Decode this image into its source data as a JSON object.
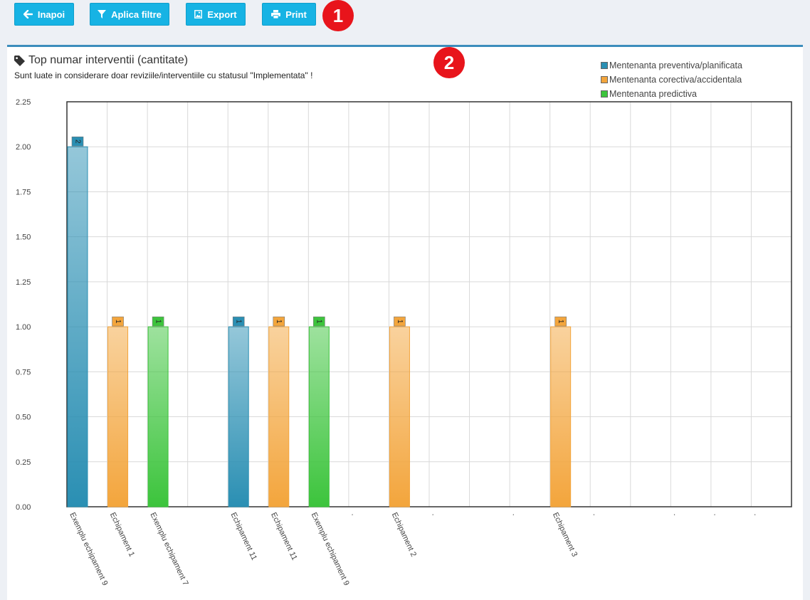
{
  "toolbar": {
    "back_label": "Inapoi",
    "filter_label": "Aplica filtre",
    "export_label": "Export",
    "print_label": "Print"
  },
  "markers": [
    "1",
    "2"
  ],
  "panel": {
    "title": "Top numar interventii (cantitate)",
    "subtitle": "Sunt luate in considerare doar reviziile/interventiile cu statusul \"Implementata\" !"
  },
  "colors": {
    "preventiva": "#2a8fb3",
    "corectiva": "#f3a53c",
    "predictiva": "#3cc43c",
    "accent": "#17b3e4"
  },
  "chart_data": {
    "type": "bar",
    "title": "Top numar interventii (cantitate)",
    "xlabel": "",
    "ylabel": "",
    "ylim": [
      0,
      2.25
    ],
    "yticks": [
      "2.25",
      "2.00",
      "1.75",
      "1.50",
      "1.25",
      "1.00",
      "0.75",
      "0.50",
      "0.25",
      "0.00"
    ],
    "grid": true,
    "legend_position": "top-right",
    "categories": [
      "Exemplu echipament 9",
      "Echipament 1",
      "Exemplu echipament 7",
      "",
      "Echipament 11",
      "Echipament 11",
      "Exemplu echipament 9",
      ".",
      "Echipament 2",
      ".",
      "",
      ".",
      "Echipament 3",
      ".",
      "",
      ".",
      ".",
      "."
    ],
    "series": [
      {
        "name": "Mentenanta preventiva/planificata",
        "values": [
          2,
          null,
          null,
          null,
          1,
          null,
          null,
          null,
          null,
          null,
          null,
          null,
          null,
          null,
          null,
          null,
          null,
          null
        ]
      },
      {
        "name": "Mentenanta corectiva/accidentala",
        "values": [
          null,
          1,
          null,
          null,
          null,
          1,
          null,
          null,
          1,
          null,
          null,
          null,
          1,
          null,
          null,
          null,
          null,
          null
        ]
      },
      {
        "name": "Mentenanta predictiva",
        "values": [
          null,
          null,
          1,
          null,
          null,
          null,
          1,
          null,
          null,
          null,
          null,
          null,
          null,
          null,
          null,
          null,
          null,
          null
        ]
      }
    ],
    "data_labels": [
      "2",
      "1",
      "1",
      "1",
      "1",
      "1",
      "1",
      "1"
    ]
  }
}
